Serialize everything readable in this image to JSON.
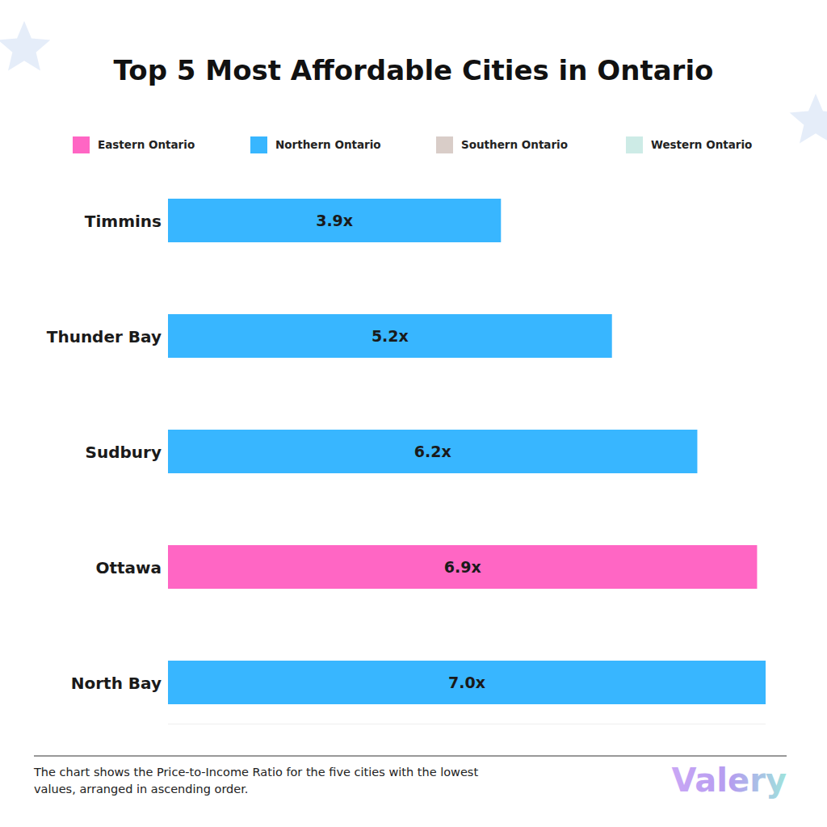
{
  "chart_data": {
    "type": "bar",
    "orientation": "horizontal",
    "stacked": true,
    "data_labels": true,
    "tick_labels": "y",
    "title": "Top 5 Most Affordable Cities in Ontario",
    "categories": [
      "Timmins",
      "Thunder Bay",
      "Sudbury",
      "Ottawa",
      "North Bay"
    ],
    "xlim": [
      0,
      7.0
    ],
    "series": [
      {
        "name": "Eastern Ontario",
        "color": "#ff66c4",
        "values": [
          null,
          null,
          null,
          6.9,
          null
        ],
        "value_labels": [
          null,
          null,
          null,
          "6.9x",
          null
        ]
      },
      {
        "name": "Northern Ontario",
        "color": "#38b6ff",
        "values": [
          3.9,
          5.2,
          6.2,
          null,
          7.0
        ],
        "value_labels": [
          "3.9x",
          "5.2x",
          "6.2x",
          null,
          "7.0x"
        ]
      },
      {
        "name": "Southern Ontario",
        "color": "#d9cdc8",
        "values": [
          null,
          null,
          null,
          null,
          null
        ],
        "value_labels": [
          null,
          null,
          null,
          null,
          null
        ]
      },
      {
        "name": "Western Ontario",
        "color": "#cdebe6",
        "values": [
          null,
          null,
          null,
          null,
          null
        ],
        "value_labels": [
          null,
          null,
          null,
          null,
          null
        ]
      }
    ],
    "footnote": "The chart shows the Price-to-Income Ratio for the five cities with the lowest values, arranged in ascending order.",
    "logo": "Valery"
  }
}
